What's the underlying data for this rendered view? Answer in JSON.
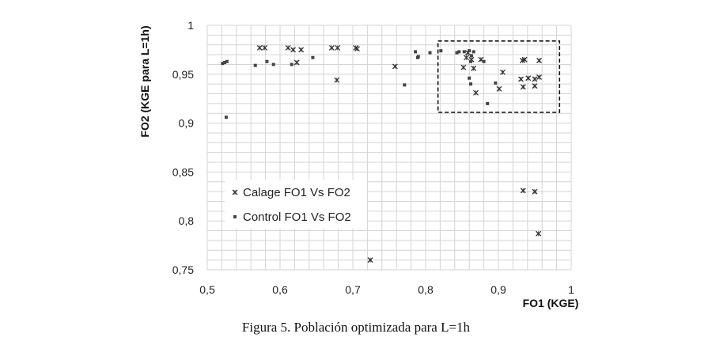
{
  "caption": "Figura 5. Población optimizada para L=1h",
  "chart_data": {
    "type": "scatter",
    "xlabel": "FO1 (KGE)",
    "ylabel": "FO2 (KGE para L=1h)",
    "xlim": [
      0.5,
      1.0
    ],
    "ylim": [
      0.75,
      1.0
    ],
    "xticks": [
      "0,5",
      "0,6",
      "0,7",
      "0,8",
      "0,9",
      "1"
    ],
    "yticks": [
      "0,75",
      "0,8",
      "0,85",
      "0,9",
      "0,95",
      "1"
    ],
    "grid": true,
    "legend_position": "left",
    "colors": {
      "calage": "#333333",
      "control": "#444444",
      "grid": "#d4d4d4",
      "box": "#111111"
    },
    "highlight_box": {
      "x": [
        0.817,
        0.984
      ],
      "y": [
        0.911,
        0.984
      ],
      "style": "dashed"
    },
    "series": [
      {
        "name": "Calage FO1 Vs FO2",
        "marker": "x",
        "points": [
          [
            0.572,
            0.977
          ],
          [
            0.579,
            0.977
          ],
          [
            0.611,
            0.977
          ],
          [
            0.618,
            0.975
          ],
          [
            0.629,
            0.975
          ],
          [
            0.671,
            0.977
          ],
          [
            0.679,
            0.977
          ],
          [
            0.704,
            0.977
          ],
          [
            0.706,
            0.976
          ],
          [
            0.678,
            0.944
          ],
          [
            0.623,
            0.962
          ],
          [
            0.758,
            0.958
          ],
          [
            0.724,
            0.76
          ],
          [
            0.852,
            0.957
          ],
          [
            0.856,
            0.967
          ],
          [
            0.863,
            0.965
          ],
          [
            0.858,
            0.972
          ],
          [
            0.866,
            0.956
          ],
          [
            0.876,
            0.965
          ],
          [
            0.869,
            0.931
          ],
          [
            0.901,
            0.935
          ],
          [
            0.906,
            0.952
          ],
          [
            0.933,
            0.964
          ],
          [
            0.936,
            0.965
          ],
          [
            0.956,
            0.964
          ],
          [
            0.931,
            0.945
          ],
          [
            0.941,
            0.946
          ],
          [
            0.95,
            0.945
          ],
          [
            0.956,
            0.947
          ],
          [
            0.934,
            0.937
          ],
          [
            0.95,
            0.938
          ],
          [
            0.934,
            0.831
          ],
          [
            0.95,
            0.83
          ],
          [
            0.955,
            0.787
          ]
        ]
      },
      {
        "name": "Control FO1 Vs FO2",
        "marker": "square",
        "points": [
          [
            0.521,
            0.961
          ],
          [
            0.524,
            0.962
          ],
          [
            0.527,
            0.963
          ],
          [
            0.526,
            0.906
          ],
          [
            0.566,
            0.959
          ],
          [
            0.582,
            0.963
          ],
          [
            0.591,
            0.96
          ],
          [
            0.616,
            0.96
          ],
          [
            0.645,
            0.967
          ],
          [
            0.771,
            0.939
          ],
          [
            0.786,
            0.973
          ],
          [
            0.789,
            0.967
          ],
          [
            0.79,
            0.968
          ],
          [
            0.806,
            0.972
          ],
          [
            0.821,
            0.974
          ],
          [
            0.843,
            0.972
          ],
          [
            0.846,
            0.973
          ],
          [
            0.853,
            0.973
          ],
          [
            0.86,
            0.974
          ],
          [
            0.866,
            0.973
          ],
          [
            0.863,
            0.969
          ],
          [
            0.862,
            0.963
          ],
          [
            0.86,
            0.946
          ],
          [
            0.862,
            0.94
          ],
          [
            0.88,
            0.963
          ],
          [
            0.885,
            0.92
          ],
          [
            0.896,
            0.941
          ]
        ]
      }
    ]
  }
}
